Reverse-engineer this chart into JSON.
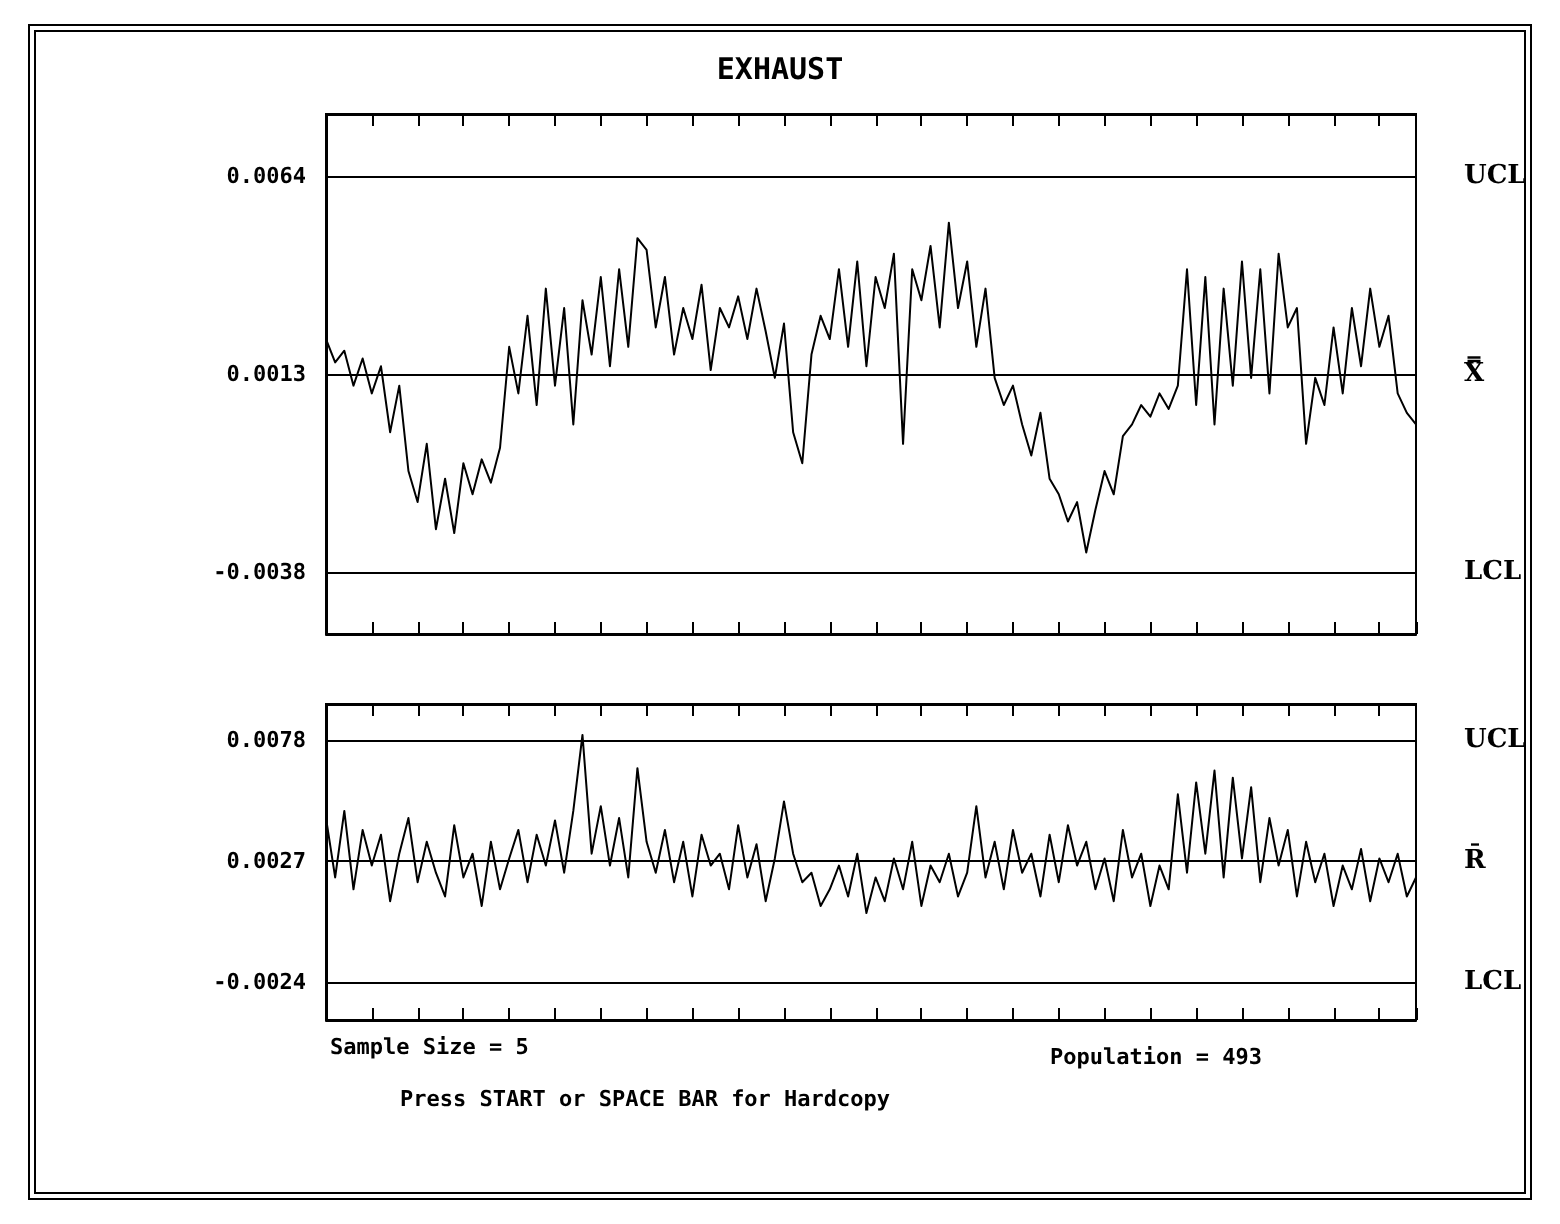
{
  "chart_data": [
    {
      "type": "line",
      "title": "EXHAUST",
      "categories": [
        null,
        null,
        null,
        null,
        null,
        null,
        null,
        null,
        null,
        null,
        null,
        null,
        null,
        null,
        null,
        null,
        null,
        null,
        null,
        null,
        null,
        null,
        null,
        null,
        null,
        null,
        null,
        null,
        null,
        null,
        null,
        null,
        null,
        null,
        null,
        null,
        null,
        null,
        null,
        null,
        null,
        null,
        null,
        null,
        null,
        null,
        null,
        null,
        null,
        null,
        null,
        null,
        null,
        null,
        null,
        null,
        null,
        null,
        null,
        null,
        null,
        null,
        null,
        null,
        null,
        null,
        null,
        null,
        null,
        null,
        null,
        null,
        null,
        null,
        null,
        null,
        null,
        null,
        null,
        null,
        null,
        null,
        null,
        null,
        null,
        null,
        null,
        null,
        null,
        null,
        null,
        null,
        null,
        null,
        null,
        null,
        null,
        null,
        null,
        null,
        null,
        null,
        null,
        null,
        null,
        null,
        null,
        null,
        null,
        null,
        null,
        null,
        null,
        null,
        null,
        null,
        null,
        null,
        null,
        null
      ],
      "series": [
        {
          "color": "#000000",
          "values": [
            0.0022,
            0.0016,
            0.0019,
            0.001,
            0.0017,
            0.0008,
            0.0015,
            -0.0002,
            0.001,
            -0.0012,
            -0.002,
            -0.0005,
            -0.0027,
            -0.0014,
            -0.0028,
            -0.001,
            -0.0018,
            -0.0009,
            -0.0015,
            -0.0006,
            0.002,
            0.0008,
            0.0028,
            0.0005,
            0.0035,
            0.001,
            0.003,
            0.0,
            0.0032,
            0.0018,
            0.0038,
            0.0015,
            0.004,
            0.002,
            0.0048,
            0.0045,
            0.0025,
            0.0038,
            0.0018,
            0.003,
            0.0022,
            0.0036,
            0.0014,
            0.003,
            0.0025,
            0.0033,
            0.0022,
            0.0035,
            0.0024,
            0.0012,
            0.0026,
            -0.0002,
            -0.001,
            0.0018,
            0.0028,
            0.0022,
            0.004,
            0.002,
            0.0042,
            0.0015,
            0.0038,
            0.003,
            0.0044,
            -0.0005,
            0.004,
            0.0032,
            0.0046,
            0.0025,
            0.0052,
            0.003,
            0.0042,
            0.002,
            0.0035,
            0.0012,
            0.0005,
            0.001,
            0.0,
            -0.0008,
            0.0003,
            -0.0014,
            -0.0018,
            -0.0025,
            -0.002,
            -0.0033,
            -0.0022,
            -0.0012,
            -0.0018,
            -0.0003,
            0.0,
            0.0005,
            0.0002,
            0.0008,
            0.0004,
            0.001,
            0.004,
            0.0005,
            0.0038,
            0.0,
            0.0035,
            0.001,
            0.0042,
            0.0012,
            0.004,
            0.0008,
            0.0044,
            0.0025,
            0.003,
            -0.0005,
            0.0012,
            0.0005,
            0.0025,
            0.0008,
            0.003,
            0.0015,
            0.0035,
            0.002,
            0.0028,
            0.0008,
            0.0003,
            0.0
          ]
        }
      ],
      "ylim": [
        -0.0054,
        0.008
      ],
      "yticks": [
        {
          "value": -0.0038,
          "label": "-0.0038"
        },
        {
          "value": 0.0013,
          "label": "0.0013"
        },
        {
          "value": 0.0064,
          "label": "0.0064"
        }
      ],
      "ref_lines": [
        {
          "axis": "y",
          "value": 0.0064,
          "label": "UCL"
        },
        {
          "axis": "y",
          "value": 0.0013,
          "label": "X̿"
        },
        {
          "axis": "y",
          "value": -0.0038,
          "label": "LCL"
        }
      ],
      "tick_labels": "y",
      "marker": "none",
      "line_style": "solid"
    },
    {
      "type": "line",
      "categories": [
        null,
        null,
        null,
        null,
        null,
        null,
        null,
        null,
        null,
        null,
        null,
        null,
        null,
        null,
        null,
        null,
        null,
        null,
        null,
        null,
        null,
        null,
        null,
        null,
        null,
        null,
        null,
        null,
        null,
        null,
        null,
        null,
        null,
        null,
        null,
        null,
        null,
        null,
        null,
        null,
        null,
        null,
        null,
        null,
        null,
        null,
        null,
        null,
        null,
        null,
        null,
        null,
        null,
        null,
        null,
        null,
        null,
        null,
        null,
        null,
        null,
        null,
        null,
        null,
        null,
        null,
        null,
        null,
        null,
        null,
        null,
        null,
        null,
        null,
        null,
        null,
        null,
        null,
        null,
        null,
        null,
        null,
        null,
        null,
        null,
        null,
        null,
        null,
        null,
        null,
        null,
        null,
        null,
        null,
        null,
        null,
        null,
        null,
        null,
        null,
        null,
        null,
        null,
        null,
        null,
        null,
        null,
        null,
        null,
        null,
        null,
        null,
        null,
        null,
        null,
        null,
        null,
        null,
        null,
        null
      ],
      "series": [
        {
          "color": "#000000",
          "values": [
            0.0045,
            0.002,
            0.0048,
            0.0015,
            0.004,
            0.0025,
            0.0038,
            0.001,
            0.003,
            0.0045,
            0.0018,
            0.0035,
            0.0022,
            0.0012,
            0.0042,
            0.002,
            0.003,
            0.0008,
            0.0035,
            0.0015,
            0.0028,
            0.004,
            0.0018,
            0.0038,
            0.0025,
            0.0044,
            0.0022,
            0.0048,
            0.008,
            0.003,
            0.005,
            0.0025,
            0.0045,
            0.002,
            0.0066,
            0.0035,
            0.0022,
            0.004,
            0.0018,
            0.0035,
            0.0012,
            0.0038,
            0.0025,
            0.003,
            0.0015,
            0.0042,
            0.002,
            0.0034,
            0.001,
            0.0028,
            0.0052,
            0.003,
            0.0018,
            0.0022,
            0.0008,
            0.0015,
            0.0025,
            0.0012,
            0.003,
            0.0005,
            0.002,
            0.001,
            0.0028,
            0.0015,
            0.0035,
            0.0008,
            0.0025,
            0.0018,
            0.003,
            0.0012,
            0.0022,
            0.005,
            0.002,
            0.0035,
            0.0015,
            0.004,
            0.0022,
            0.003,
            0.0012,
            0.0038,
            0.0018,
            0.0042,
            0.0025,
            0.0035,
            0.0015,
            0.0028,
            0.001,
            0.004,
            0.002,
            0.003,
            0.0008,
            0.0025,
            0.0015,
            0.0055,
            0.0022,
            0.006,
            0.003,
            0.0065,
            0.002,
            0.0062,
            0.0028,
            0.0058,
            0.0018,
            0.0045,
            0.0025,
            0.004,
            0.0012,
            0.0035,
            0.0018,
            0.003,
            0.0008,
            0.0025,
            0.0015,
            0.0032,
            0.001,
            0.0028,
            0.0018,
            0.003,
            0.0012,
            0.002
          ]
        }
      ],
      "ylim": [
        -0.004,
        0.0093
      ],
      "yticks": [
        {
          "value": -0.0024,
          "label": "-0.0024"
        },
        {
          "value": 0.0027,
          "label": "0.0027"
        },
        {
          "value": 0.0078,
          "label": "0.0078"
        }
      ],
      "ref_lines": [
        {
          "axis": "y",
          "value": 0.0078,
          "label": "UCL"
        },
        {
          "axis": "y",
          "value": 0.0027,
          "label": "R̄"
        },
        {
          "axis": "y",
          "value": -0.0024,
          "label": "LCL"
        }
      ],
      "annotations": [
        "Sample Size = 5",
        "Population = 493",
        "Press START or SPACE BAR for Hardcopy"
      ],
      "tick_labels": "y",
      "marker": "none",
      "line_style": "solid"
    }
  ]
}
